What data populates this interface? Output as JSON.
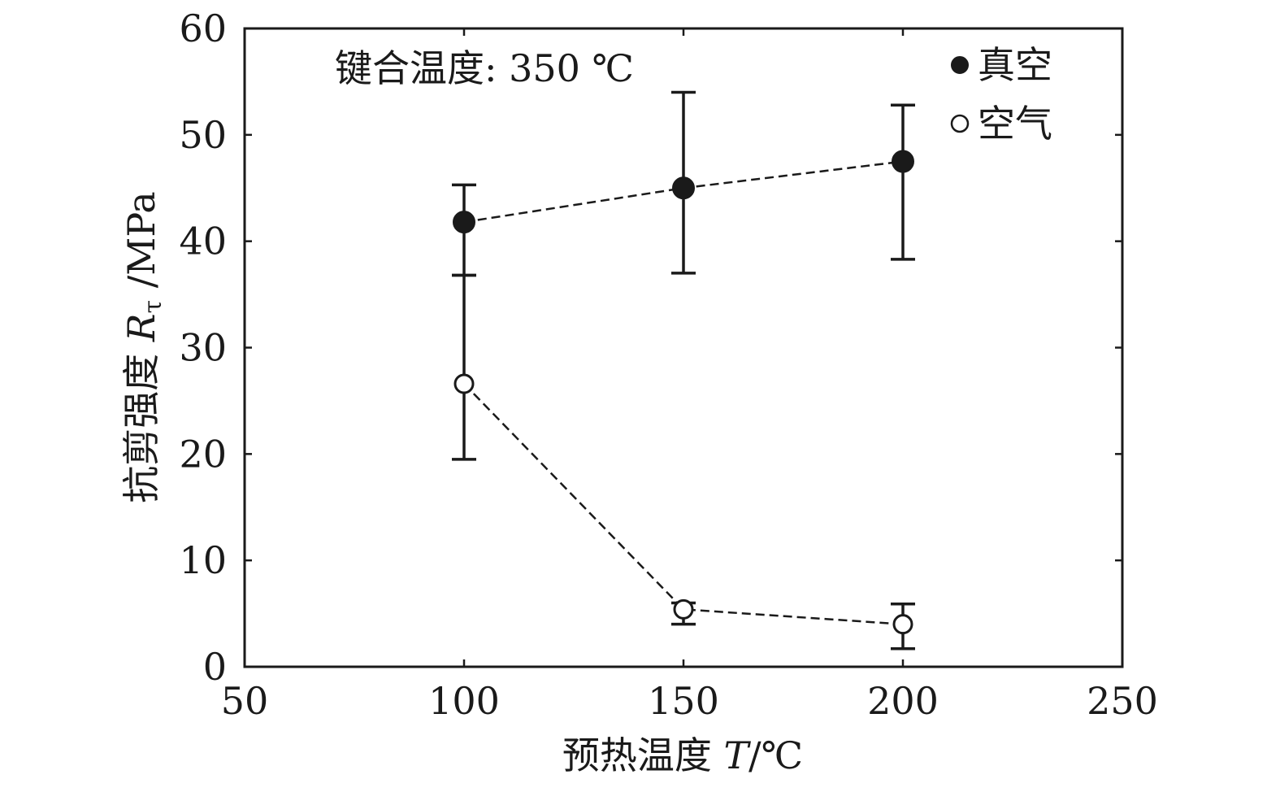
{
  "chart_data": {
    "type": "scatter",
    "title": "",
    "annotation": "键合温度: 350 ℃",
    "xlabel": {
      "prefix": "预热温度 ",
      "var": "T",
      "unit": "/℃"
    },
    "ylabel": {
      "prefix": "抗剪强度 ",
      "var": "R",
      "sub": "τ",
      "unit": " /MPa"
    },
    "xlim": [
      50,
      250
    ],
    "ylim": [
      0,
      60
    ],
    "xticks": [
      "50",
      "100",
      "150",
      "200",
      "250"
    ],
    "yticks": [
      "0",
      "10",
      "20",
      "30",
      "40",
      "50",
      "60"
    ],
    "x": [
      100,
      150,
      200
    ],
    "legend_position": "top-right",
    "grid": false,
    "series": [
      {
        "name": "真空",
        "marker": "filled-circle",
        "x": [
          100,
          150,
          200
        ],
        "values": [
          41.8,
          45.0,
          47.5
        ],
        "err_low": [
          36.8,
          37.0,
          38.3
        ],
        "err_high": [
          45.3,
          54.0,
          52.8
        ]
      },
      {
        "name": "空气",
        "marker": "open-circle",
        "x": [
          100,
          150,
          200
        ],
        "values": [
          26.6,
          5.4,
          4.0
        ],
        "err_low": [
          19.5,
          4.0,
          1.7
        ],
        "err_high": [
          36.8,
          6.0,
          5.9
        ]
      }
    ]
  }
}
